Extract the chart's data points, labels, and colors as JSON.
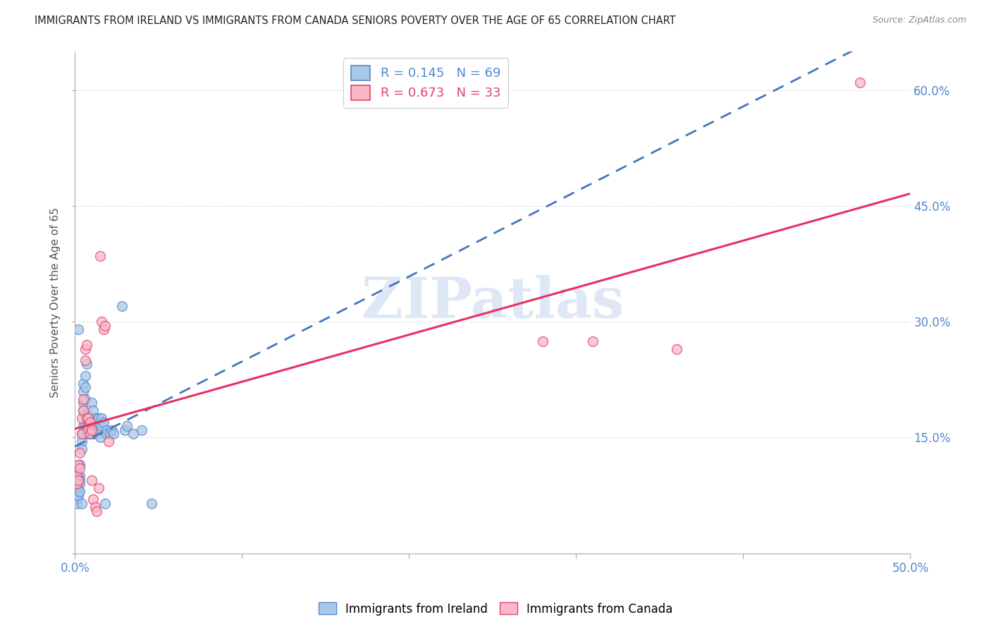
{
  "title": "IMMIGRANTS FROM IRELAND VS IMMIGRANTS FROM CANADA SENIORS POVERTY OVER THE AGE OF 65 CORRELATION CHART",
  "source": "Source: ZipAtlas.com",
  "ylabel": "Seniors Poverty Over the Age of 65",
  "xlim": [
    0.0,
    0.5
  ],
  "ylim": [
    0.0,
    0.65
  ],
  "right_yticks": [
    0.15,
    0.3,
    0.45,
    0.6
  ],
  "right_ytick_labels": [
    "15.0%",
    "30.0%",
    "45.0%",
    "60.0%"
  ],
  "ireland_color": "#a8c8e8",
  "canada_color": "#f8b8c8",
  "ireland_edge_color": "#5588cc",
  "canada_edge_color": "#e04468",
  "ireland_line_color": "#4477bb",
  "canada_line_color": "#e83060",
  "background_color": "#ffffff",
  "watermark": "ZIPatlas",
  "watermark_color": "#c8d8f0",
  "grid_color": "#dddddd",
  "tick_color": "#5588cc",
  "ireland_R": 0.145,
  "canada_R": 0.673,
  "ireland_N": 69,
  "canada_N": 33,
  "ireland_scatter": [
    [
      0.001,
      0.1
    ],
    [
      0.001,
      0.09
    ],
    [
      0.001,
      0.085
    ],
    [
      0.001,
      0.08
    ],
    [
      0.001,
      0.075
    ],
    [
      0.001,
      0.07
    ],
    [
      0.001,
      0.065
    ],
    [
      0.002,
      0.1
    ],
    [
      0.002,
      0.095
    ],
    [
      0.002,
      0.085
    ],
    [
      0.002,
      0.08
    ],
    [
      0.002,
      0.075
    ],
    [
      0.002,
      0.29
    ],
    [
      0.003,
      0.115
    ],
    [
      0.003,
      0.1
    ],
    [
      0.003,
      0.095
    ],
    [
      0.003,
      0.09
    ],
    [
      0.003,
      0.08
    ],
    [
      0.004,
      0.155
    ],
    [
      0.004,
      0.145
    ],
    [
      0.004,
      0.135
    ],
    [
      0.004,
      0.065
    ],
    [
      0.005,
      0.22
    ],
    [
      0.005,
      0.21
    ],
    [
      0.005,
      0.195
    ],
    [
      0.005,
      0.185
    ],
    [
      0.005,
      0.165
    ],
    [
      0.006,
      0.23
    ],
    [
      0.006,
      0.215
    ],
    [
      0.006,
      0.2
    ],
    [
      0.006,
      0.18
    ],
    [
      0.006,
      0.165
    ],
    [
      0.007,
      0.245
    ],
    [
      0.007,
      0.16
    ],
    [
      0.007,
      0.155
    ],
    [
      0.008,
      0.18
    ],
    [
      0.008,
      0.165
    ],
    [
      0.009,
      0.17
    ],
    [
      0.009,
      0.155
    ],
    [
      0.01,
      0.195
    ],
    [
      0.01,
      0.165
    ],
    [
      0.01,
      0.155
    ],
    [
      0.011,
      0.185
    ],
    [
      0.011,
      0.17
    ],
    [
      0.011,
      0.155
    ],
    [
      0.012,
      0.175
    ],
    [
      0.012,
      0.165
    ],
    [
      0.013,
      0.165
    ],
    [
      0.013,
      0.155
    ],
    [
      0.014,
      0.175
    ],
    [
      0.014,
      0.165
    ],
    [
      0.015,
      0.16
    ],
    [
      0.015,
      0.15
    ],
    [
      0.016,
      0.175
    ],
    [
      0.016,
      0.165
    ],
    [
      0.017,
      0.17
    ],
    [
      0.018,
      0.065
    ],
    [
      0.019,
      0.16
    ],
    [
      0.019,
      0.155
    ],
    [
      0.021,
      0.155
    ],
    [
      0.022,
      0.16
    ],
    [
      0.023,
      0.155
    ],
    [
      0.028,
      0.32
    ],
    [
      0.03,
      0.16
    ],
    [
      0.031,
      0.165
    ],
    [
      0.035,
      0.155
    ],
    [
      0.04,
      0.16
    ],
    [
      0.046,
      0.065
    ],
    [
      0.005,
      0.155
    ]
  ],
  "canada_scatter": [
    [
      0.001,
      0.1
    ],
    [
      0.001,
      0.09
    ],
    [
      0.002,
      0.115
    ],
    [
      0.002,
      0.095
    ],
    [
      0.003,
      0.13
    ],
    [
      0.003,
      0.11
    ],
    [
      0.004,
      0.175
    ],
    [
      0.004,
      0.155
    ],
    [
      0.005,
      0.2
    ],
    [
      0.005,
      0.185
    ],
    [
      0.006,
      0.265
    ],
    [
      0.006,
      0.25
    ],
    [
      0.007,
      0.27
    ],
    [
      0.007,
      0.175
    ],
    [
      0.008,
      0.175
    ],
    [
      0.008,
      0.16
    ],
    [
      0.009,
      0.17
    ],
    [
      0.009,
      0.155
    ],
    [
      0.01,
      0.16
    ],
    [
      0.01,
      0.095
    ],
    [
      0.011,
      0.07
    ],
    [
      0.012,
      0.06
    ],
    [
      0.013,
      0.055
    ],
    [
      0.014,
      0.085
    ],
    [
      0.015,
      0.385
    ],
    [
      0.016,
      0.3
    ],
    [
      0.017,
      0.29
    ],
    [
      0.018,
      0.295
    ],
    [
      0.02,
      0.145
    ],
    [
      0.28,
      0.275
    ],
    [
      0.31,
      0.275
    ],
    [
      0.36,
      0.265
    ],
    [
      0.47,
      0.61
    ]
  ]
}
